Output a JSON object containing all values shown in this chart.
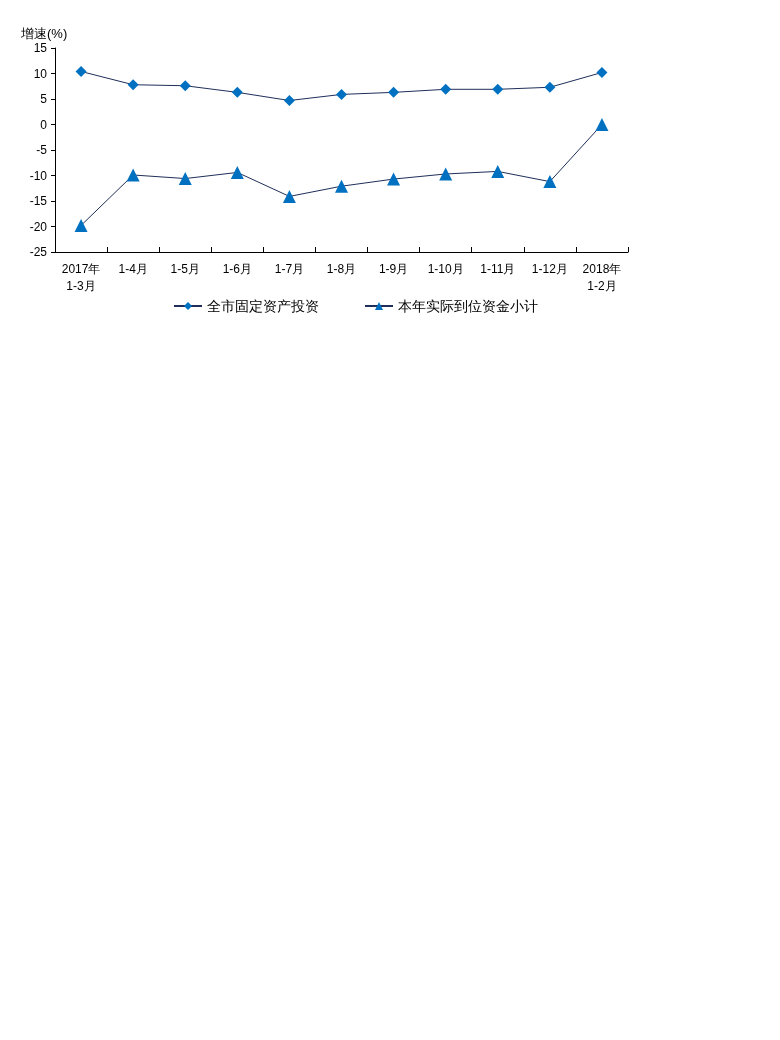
{
  "chart_data": {
    "type": "line",
    "ylabel": "增速(%)",
    "categories": [
      "2017年\n1-3月",
      "1-4月",
      "1-5月",
      "1-6月",
      "1-7月",
      "1-8月",
      "1-9月",
      "1-10月",
      "1-11月",
      "1-12月",
      "2018年\n1-2月"
    ],
    "series": [
      {
        "name": "全市固定资产投资",
        "color": "#0070c0",
        "marker": "diamond",
        "values": [
          10.4,
          7.8,
          7.6,
          6.3,
          4.7,
          5.9,
          6.3,
          6.9,
          6.9,
          7.3,
          10.2
        ]
      },
      {
        "name": "本年实际到位资金小计",
        "color": "#0070c0",
        "marker": "triangle",
        "values": [
          -19.8,
          -9.9,
          -10.6,
          -9.4,
          -14.1,
          -12.1,
          -10.7,
          -9.7,
          -9.2,
          -11.2,
          0
        ]
      }
    ],
    "ylim": [
      -25,
      15
    ],
    "yticks": [
      -25,
      -20,
      -15,
      -10,
      -5,
      0,
      5,
      10,
      15
    ],
    "grid": false,
    "legend": "bottom"
  }
}
